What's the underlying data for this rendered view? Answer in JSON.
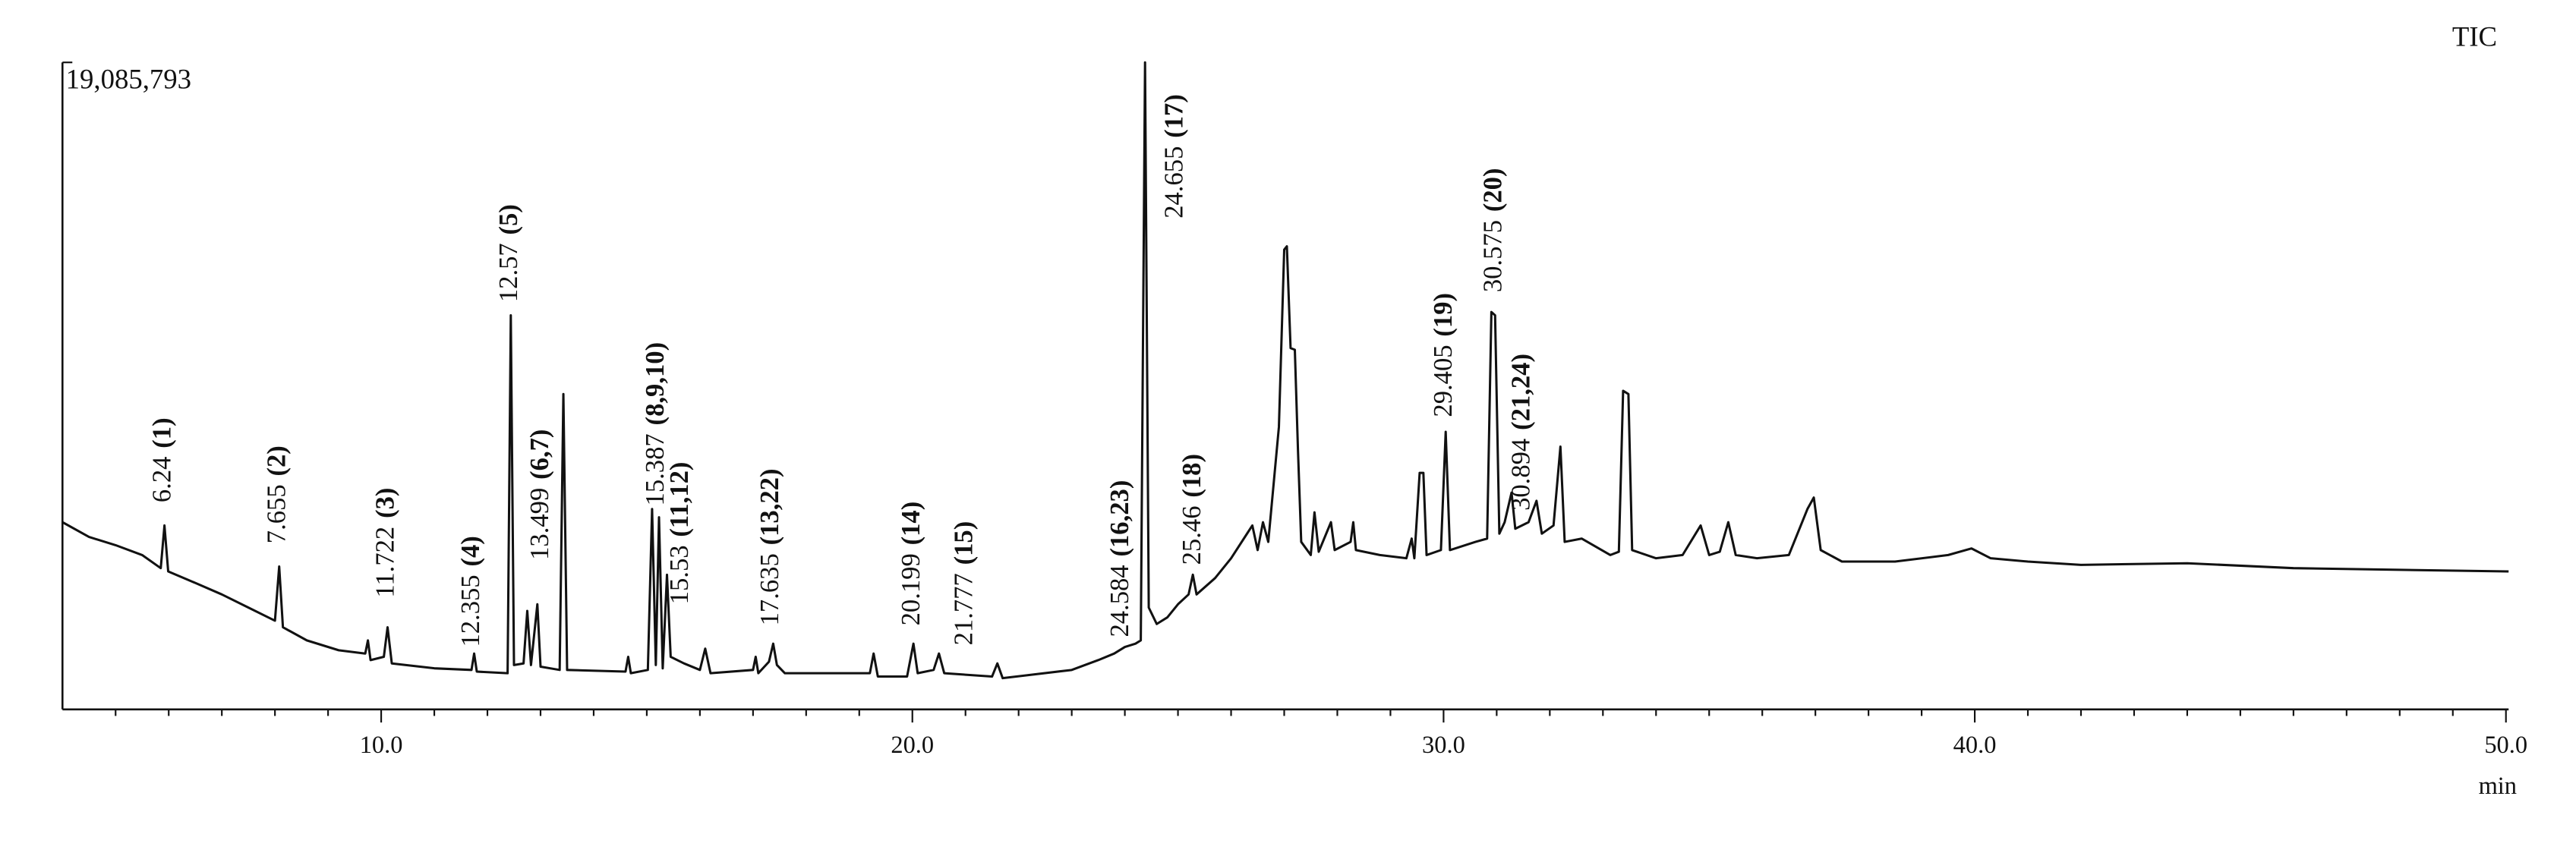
{
  "chart_data": {
    "type": "line",
    "trace_label": "TIC",
    "xlabel": "min",
    "color": "#111111",
    "xlim": [
      4.0,
      50.05
    ],
    "ylim": [
      0,
      19085793
    ],
    "xticks": [
      {
        "value": 10,
        "label": "10.0"
      },
      {
        "value": 20,
        "label": "20.0"
      },
      {
        "value": 30,
        "label": "30.0"
      },
      {
        "value": 40,
        "label": "40.0"
      },
      {
        "value": 50,
        "label": "50.0"
      }
    ],
    "xminorticks": [
      5,
      6,
      7,
      8,
      9,
      11,
      12,
      13,
      14,
      15,
      16,
      17,
      18,
      19,
      21,
      22,
      23,
      24,
      25,
      26,
      27,
      28,
      29,
      31,
      32,
      33,
      34,
      35,
      36,
      37,
      38,
      39,
      41,
      42,
      43,
      44,
      45,
      46,
      47,
      48,
      49
    ],
    "yticks": [
      {
        "value": 19085793,
        "label": "19,085,793"
      }
    ],
    "x": [
      4.0,
      4.5,
      5.0,
      5.5,
      5.85,
      5.92,
      5.99,
      6.5,
      7.0,
      7.5,
      8.0,
      8.08,
      8.15,
      8.6,
      9.2,
      9.7,
      9.75,
      9.8,
      10.05,
      10.12,
      10.2,
      11.0,
      11.7,
      11.75,
      11.8,
      12.38,
      12.44,
      12.5,
      12.68,
      12.75,
      12.82,
      12.94,
      13.0,
      13.36,
      13.43,
      13.5,
      14.6,
      14.65,
      14.7,
      15.02,
      15.1,
      15.17,
      15.23,
      15.3,
      15.38,
      15.45,
      15.7,
      16.0,
      16.1,
      16.2,
      17.0,
      17.05,
      17.1,
      17.3,
      17.38,
      17.45,
      17.6,
      19.2,
      19.27,
      19.35,
      19.9,
      20.02,
      20.1,
      20.4,
      20.5,
      20.6,
      21.5,
      21.6,
      21.7,
      23.0,
      23.5,
      23.8,
      24.0,
      24.2,
      24.3,
      24.38,
      24.45,
      24.6,
      24.8,
      25.0,
      25.2,
      25.28,
      25.35,
      25.7,
      26.0,
      26.3,
      26.4,
      26.5,
      26.6,
      26.7,
      26.9,
      27.0,
      27.05,
      27.12,
      27.2,
      27.26,
      27.32,
      27.5,
      27.57,
      27.65,
      27.88,
      27.95,
      28.25,
      28.3,
      28.35,
      28.8,
      29.3,
      29.4,
      29.45,
      29.55,
      29.62,
      29.68,
      29.95,
      30.04,
      30.12,
      30.6,
      30.82,
      30.9,
      30.97,
      31.05,
      31.15,
      31.28,
      31.35,
      31.6,
      31.75,
      31.85,
      32.07,
      32.2,
      32.28,
      32.6,
      33.14,
      33.3,
      33.38,
      33.48,
      33.55,
      34.0,
      34.5,
      34.84,
      35.0,
      35.2,
      35.36,
      35.5,
      35.9,
      36.5,
      36.85,
      36.97,
      37.1,
      37.5,
      38.5,
      39.5,
      39.94,
      40.3,
      41.0,
      42.0,
      44.0,
      46.0,
      48.0,
      50.05
    ],
    "values": [
      5522000,
      5086000,
      4844000,
      4553000,
      4166000,
      5425000,
      4069000,
      3730000,
      3391000,
      3003000,
      2616000,
      4214000,
      2422000,
      2035000,
      1744000,
      1647000,
      2035000,
      1453000,
      1550000,
      2422000,
      1356000,
      1211000,
      1163000,
      1647000,
      1114000,
      1066000,
      11626000,
      1308000,
      1356000,
      2906000,
      1308000,
      3100000,
      1259000,
      1163000,
      9301000,
      1163000,
      1114000,
      1550000,
      1066000,
      1163000,
      5910000,
      1308000,
      5668000,
      1211000,
      3972000,
      1550000,
      1356000,
      1163000,
      1792000,
      1066000,
      1163000,
      1550000,
      1066000,
      1405000,
      1938000,
      1308000,
      1066000,
      1066000,
      1647000,
      969000,
      969000,
      1938000,
      1066000,
      1163000,
      1647000,
      1066000,
      969000,
      1356000,
      920000,
      1163000,
      1453000,
      1647000,
      1841000,
      1938000,
      2035000,
      19085793,
      3003000,
      2519000,
      2713000,
      3100000,
      3391000,
      3972000,
      3391000,
      3875000,
      4457000,
      5183000,
      5425000,
      4699000,
      5522000,
      4941000,
      8332000,
      13563000,
      13660000,
      10657000,
      10609000,
      7605000,
      4941000,
      4553000,
      5813000,
      4650000,
      5522000,
      4699000,
      4941000,
      5522000,
      4699000,
      4553000,
      4457000,
      5038000,
      4457000,
      6976000,
      6976000,
      4553000,
      4699000,
      8187000,
      4699000,
      4941000,
      5038000,
      11723000,
      11626000,
      5183000,
      5522000,
      6394000,
      5329000,
      5522000,
      6152000,
      5183000,
      5425000,
      7751000,
      4941000,
      5038000,
      4553000,
      4650000,
      9398000,
      9301000,
      4699000,
      4457000,
      4553000,
      5425000,
      4553000,
      4650000,
      5522000,
      4553000,
      4457000,
      4553000,
      5910000,
      6249000,
      4699000,
      4360000,
      4360000,
      4553000,
      4747000,
      4457000,
      4360000,
      4263000,
      4311000,
      4166000,
      4117000,
      4069000
    ],
    "annotations": [
      {
        "x": 5.92,
        "y": 5910000,
        "time": "6.24",
        "peaks": "(1)"
      },
      {
        "x": 8.08,
        "y": 4699000,
        "time": "7.655",
        "peaks": "(2)"
      },
      {
        "x": 10.12,
        "y": 3100000,
        "time": "11.722",
        "peaks": "(3)"
      },
      {
        "x": 11.73,
        "y": 1647000,
        "time": "12.355",
        "peaks": "(4)"
      },
      {
        "x": 12.44,
        "y": 11820000,
        "time": "12.57",
        "peaks": "(5)"
      },
      {
        "x": 13.03,
        "y": 4214000,
        "time": "13.499",
        "peaks": "(6,7)"
      },
      {
        "x": 15.2,
        "y": 5813000,
        "time": "15.387",
        "peaks": "(8,9,10)"
      },
      {
        "x": 15.66,
        "y": 2906000,
        "time": "15.53",
        "peaks": "(11,12)"
      },
      {
        "x": 17.36,
        "y": 2277000,
        "time": "17.635",
        "peaks": "(13,22)"
      },
      {
        "x": 20.02,
        "y": 2277000,
        "time": "20.199",
        "peaks": "(14)"
      },
      {
        "x": 21.01,
        "y": 1695000,
        "time": "21.777",
        "peaks": "(15)"
      },
      {
        "x": 23.95,
        "y": 1938000,
        "time": "24.584",
        "peaks": "(16,23)"
      },
      {
        "x": 24.97,
        "y": 14290000,
        "time": "24.655",
        "peaks": "(17)"
      },
      {
        "x": 25.31,
        "y": 4069000,
        "time": "25.46",
        "peaks": "(18)"
      },
      {
        "x": 30.04,
        "y": 8429000,
        "time": "29.405",
        "peaks": "(19)"
      },
      {
        "x": 30.97,
        "y": 12110000,
        "time": "30.575",
        "peaks": "(20)"
      },
      {
        "x": 31.5,
        "y": 5668000,
        "time": "30.894",
        "peaks": "(21,24)"
      }
    ]
  }
}
